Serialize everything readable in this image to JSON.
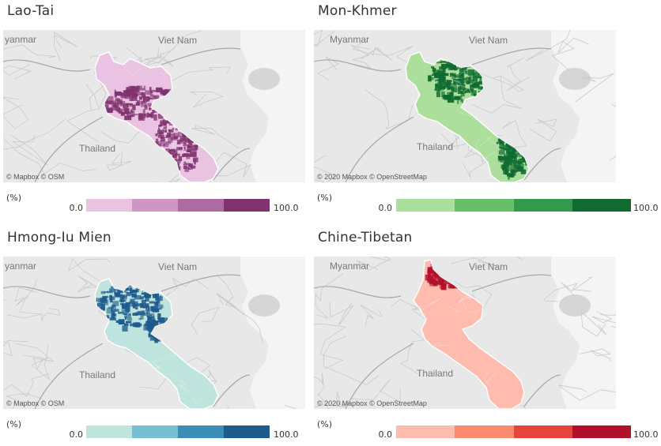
{
  "unit_label": "(%)",
  "countries": {
    "myanmar": "Myanmar",
    "myanmar_cut": "yanmar",
    "vietnam": "Viet Nam",
    "thailand": "Thailand"
  },
  "attribution_short": "© Mapbox  © OSM",
  "attribution_long": "© 2020 Mapbox  © OpenStreetMap",
  "panels": [
    {
      "title": "Lao-Tai",
      "legend": {
        "min": "0.0",
        "max": "100.0",
        "colors": [
          "#eac3e2",
          "#cf96c4",
          "#ad6aa3",
          "#80336f"
        ]
      },
      "base_color": "#eac3e2",
      "dense_color": "#80336f"
    },
    {
      "title": "Mon-Khmer",
      "legend": {
        "min": "0.0",
        "max": "100.0",
        "colors": [
          "#addf9c",
          "#69be6a",
          "#329a4a",
          "#0f6b30"
        ]
      },
      "base_color": "#addf9c",
      "dense_color": "#0f6b30"
    },
    {
      "title": "Hmong-Iu Mien",
      "legend": {
        "min": "0.0",
        "max": "100.0",
        "colors": [
          "#bfe4dd",
          "#76bfd0",
          "#3b8db7",
          "#1e5a8c"
        ]
      },
      "base_color": "#bfe4dd",
      "dense_color": "#1e5a8c"
    },
    {
      "title": "Chine-Tibetan",
      "legend": {
        "min": "0.0",
        "max": "100.0",
        "colors": [
          "#ffbcae",
          "#fc8a6e",
          "#e8443e",
          "#b1102b"
        ]
      },
      "base_color": "#ffbcae",
      "dense_color": "#b1102b"
    }
  ]
}
